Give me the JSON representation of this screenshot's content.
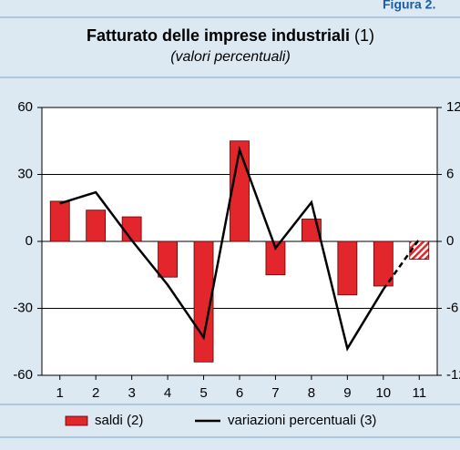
{
  "header": "Figura 2.",
  "chart_data": {
    "type": "bar_line",
    "title": "Fatturato delle imprese industriali",
    "title_note": "(1)",
    "subtitle": "(valori percentuali)",
    "categories": [
      "1",
      "2",
      "3",
      "4",
      "5",
      "6",
      "7",
      "8",
      "9",
      "10",
      "11"
    ],
    "series": [
      {
        "name": "saldi (2)",
        "color": "#e3262b",
        "type": "bar",
        "axis": "y",
        "values": [
          18,
          14,
          11,
          -16,
          -54,
          45,
          -15,
          10,
          -24,
          -20,
          -8
        ]
      },
      {
        "name": "variazioni percentuali (3)",
        "color": "#000000",
        "type": "line",
        "axis": "y2",
        "values": [
          3.4,
          4.4,
          0.1,
          -3.9,
          -8.6,
          8.2,
          -0.6,
          3.5,
          -9.6,
          -4.3,
          0.2
        ]
      }
    ],
    "ylim": [
      -60,
      60
    ],
    "yticks": [
      -60,
      -30,
      0,
      30,
      60
    ],
    "y2lim": [
      -12,
      12
    ],
    "y2ticks": [
      -12,
      -6,
      0,
      6,
      12
    ],
    "grid": true
  }
}
